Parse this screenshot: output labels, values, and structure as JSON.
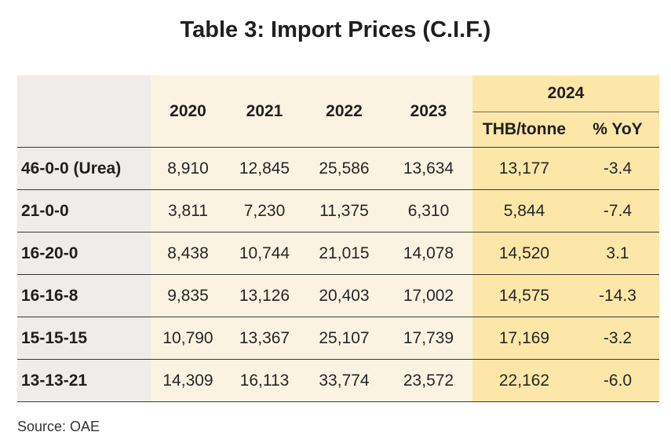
{
  "title": "Table 3: Import Prices (C.I.F.)",
  "table": {
    "years": [
      "2020",
      "2021",
      "2022",
      "2023"
    ],
    "group_year": "2024",
    "sub_headers": [
      "THB/tonne",
      "% YoY"
    ],
    "rows": [
      {
        "label": "46-0-0 (Urea)",
        "values": [
          "8,910",
          "12,845",
          "25,586",
          "13,634"
        ],
        "thb": "13,177",
        "yoy": "-3.4"
      },
      {
        "label": "21-0-0",
        "values": [
          "3,811",
          "7,230",
          "11,375",
          "6,310"
        ],
        "thb": "5,844",
        "yoy": "-7.4"
      },
      {
        "label": "16-20-0",
        "values": [
          "8,438",
          "10,744",
          "21,015",
          "14,078"
        ],
        "thb": "14,520",
        "yoy": "3.1"
      },
      {
        "label": "16-16-8",
        "values": [
          "9,835",
          "13,126",
          "20,403",
          "17,002"
        ],
        "thb": "14,575",
        "yoy": "-14.3"
      },
      {
        "label": "15-15-15",
        "values": [
          "10,790",
          "13,367",
          "25,107",
          "17,739"
        ],
        "thb": "17,169",
        "yoy": "-3.2"
      },
      {
        "label": "13-13-21",
        "values": [
          "14,309",
          "16,113",
          "33,774",
          "23,572"
        ],
        "thb": "22,162",
        "yoy": "-6.0"
      }
    ]
  },
  "source": "Source: OAE"
}
